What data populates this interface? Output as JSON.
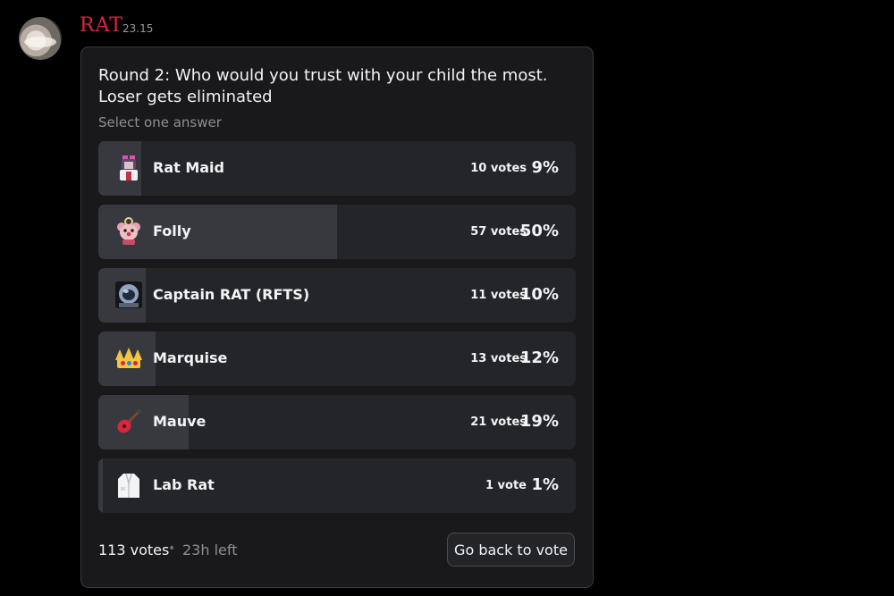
{
  "message": {
    "author": "RAT",
    "timestamp": "23.15"
  },
  "poll": {
    "question_line1": "Round 2: Who would you trust with your child the most.",
    "question_line2": "Loser gets eliminated",
    "hint": "Select one answer",
    "options": [
      {
        "label": "Rat Maid",
        "votes": "10 votes",
        "percent": "9%",
        "share": 0.09,
        "icon": "maid-rat-icon"
      },
      {
        "label": "Folly",
        "votes": "57 votes",
        "percent": "50%",
        "share": 0.5,
        "icon": "clown-rat-icon"
      },
      {
        "label": "Captain RAT (RFTS)",
        "votes": "11 votes",
        "percent": "10%",
        "share": 0.1,
        "icon": "helmet-icon"
      },
      {
        "label": "Marquise",
        "votes": "13 votes",
        "percent": "12%",
        "share": 0.12,
        "icon": "crown-icon"
      },
      {
        "label": "Mauve",
        "votes": "21 votes",
        "percent": "19%",
        "share": 0.19,
        "icon": "guitar-icon"
      },
      {
        "label": "Lab Rat",
        "votes": "1 vote",
        "percent": "1%",
        "share": 0.01,
        "icon": "lab-coat-icon"
      }
    ],
    "total_votes": "113 votes",
    "separator": "•",
    "time_left": "23h left",
    "button_label": "Go back to vote"
  },
  "colors": {
    "author": "#e0243f",
    "background": "#000000",
    "card": "#19191c",
    "option_bg": "#242529",
    "option_fill": "#38393e"
  }
}
